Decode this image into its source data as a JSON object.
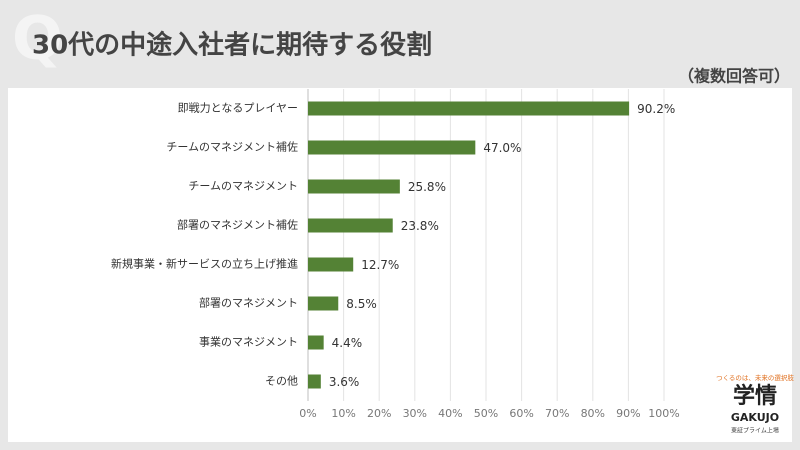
{
  "watermark": "Q",
  "chart_data": {
    "type": "barh",
    "title": "30代の中途入社者に期待する役割",
    "subtitle": "（複数回答可）",
    "categories": [
      "即戦力となるプレイヤー",
      "チームのマネジメント補佐",
      "チームのマネジメント",
      "部署のマネジメント補佐",
      "新規事業・新サービスの立ち上げ推進",
      "部署のマネジメント",
      "事業のマネジメント",
      "その他"
    ],
    "values": [
      90.2,
      47.0,
      25.8,
      23.8,
      12.7,
      8.5,
      4.4,
      3.6
    ],
    "value_labels": [
      "90.2%",
      "47.0%",
      "25.8%",
      "23.8%",
      "12.7%",
      "8.5%",
      "4.4%",
      "3.6%"
    ],
    "color": "#548235",
    "xlim": [
      0,
      100
    ],
    "xticks": [
      {
        "value": 0,
        "label": "0%"
      },
      {
        "value": 10,
        "label": "10%"
      },
      {
        "value": 20,
        "label": "20%"
      },
      {
        "value": 30,
        "label": "30%"
      },
      {
        "value": 40,
        "label": "40%"
      },
      {
        "value": 50,
        "label": "50%"
      },
      {
        "value": 60,
        "label": "60%"
      },
      {
        "value": 70,
        "label": "70%"
      },
      {
        "value": 80,
        "label": "80%"
      },
      {
        "value": 90,
        "label": "90%"
      },
      {
        "value": 100,
        "label": "100%"
      }
    ],
    "grid": true
  },
  "logo": {
    "tagline": "つくるのは、未来の選択肢",
    "name": "学情",
    "name_en": "GAKUJO",
    "note": "東証プライム上場"
  }
}
